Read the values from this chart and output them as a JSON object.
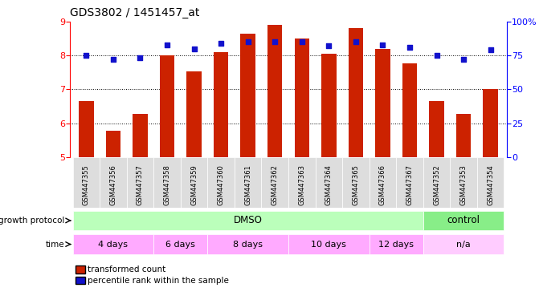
{
  "title": "GDS3802 / 1451457_at",
  "samples": [
    "GSM447355",
    "GSM447356",
    "GSM447357",
    "GSM447358",
    "GSM447359",
    "GSM447360",
    "GSM447361",
    "GSM447362",
    "GSM447363",
    "GSM447364",
    "GSM447365",
    "GSM447366",
    "GSM447367",
    "GSM447352",
    "GSM447353",
    "GSM447354"
  ],
  "transformed_count": [
    6.65,
    5.78,
    6.27,
    8.0,
    7.53,
    8.1,
    8.65,
    8.9,
    8.5,
    8.05,
    8.8,
    8.2,
    7.76,
    6.65,
    6.28,
    7.0
  ],
  "percentile_rank": [
    75,
    72,
    73,
    83,
    80,
    84,
    85,
    85,
    85,
    82,
    85,
    83,
    81,
    75,
    72,
    79
  ],
  "ylim_left": [
    5,
    9
  ],
  "ylim_right": [
    0,
    100
  ],
  "yticks_left": [
    5,
    6,
    7,
    8,
    9
  ],
  "yticks_right": [
    0,
    25,
    50,
    75,
    100
  ],
  "ytick_labels_right": [
    "0",
    "25",
    "50",
    "75",
    "100%"
  ],
  "bar_color": "#cc2200",
  "dot_color": "#1111cc",
  "dot_size": 18,
  "bg_color": "#ffffff",
  "growth_protocol_label": "growth protocol",
  "time_label": "time",
  "dmso_color": "#bbffbb",
  "control_color": "#88ee88",
  "time_color": "#ffaaff",
  "time_na_color": "#ffccff",
  "growth_dmso": "DMSO",
  "growth_control": "control",
  "time_groups": [
    {
      "label": "4 days",
      "start": 0,
      "end": 3
    },
    {
      "label": "6 days",
      "start": 3,
      "end": 5
    },
    {
      "label": "8 days",
      "start": 5,
      "end": 8
    },
    {
      "label": "10 days",
      "start": 8,
      "end": 11
    },
    {
      "label": "12 days",
      "start": 11,
      "end": 13
    },
    {
      "label": "n/a",
      "start": 13,
      "end": 16
    }
  ],
  "legend_red_label": "transformed count",
  "legend_blue_label": "percentile rank within the sample",
  "sample_bg_color": "#dddddd"
}
